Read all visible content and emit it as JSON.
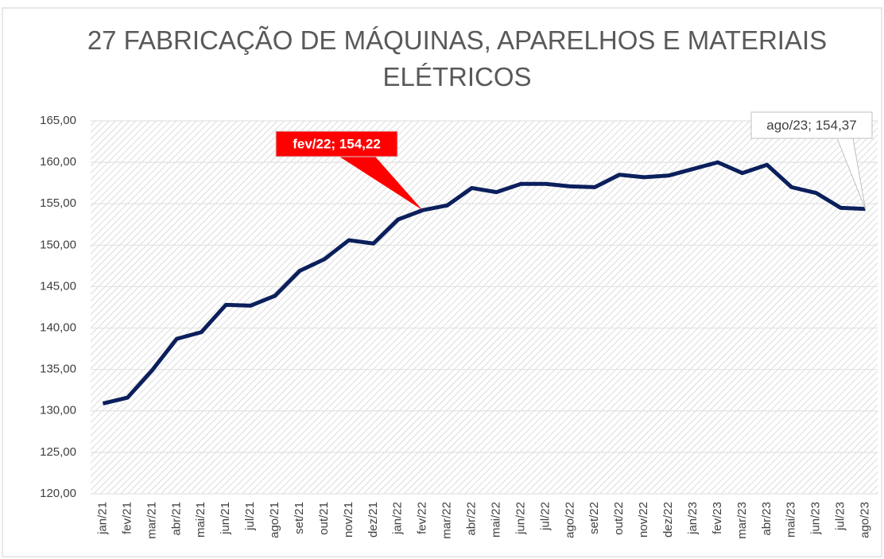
{
  "chart_data": {
    "type": "line",
    "title": "27 FABRICAÇÃO DE MÁQUINAS, APARELHOS E MATERIAIS ELÉTRICOS",
    "categories": [
      "jan/21",
      "fev/21",
      "mar/21",
      "abr/21",
      "mai/21",
      "jun/21",
      "jul/21",
      "ago/21",
      "set/21",
      "out/21",
      "nov/21",
      "dez/21",
      "jan/22",
      "fev/22",
      "mar/22",
      "abr/22",
      "mai/22",
      "jun/22",
      "jul/22",
      "ago/22",
      "set/22",
      "out/22",
      "nov/22",
      "dez/22",
      "jan/23",
      "fev/23",
      "mar/23",
      "abr/23",
      "mai/23",
      "jun/23",
      "jul/23",
      "ago/23"
    ],
    "series": [
      {
        "name": "27 FABRICAÇÃO DE MÁQUINAS, APARELHOS E MATERIAIS ELÉTRICOS",
        "color": "#0b1f5c",
        "values": [
          130.9,
          131.6,
          134.9,
          138.7,
          139.5,
          142.8,
          142.7,
          143.9,
          146.9,
          148.3,
          150.6,
          150.2,
          153.1,
          154.22,
          154.8,
          156.9,
          156.4,
          157.4,
          157.4,
          157.1,
          157.0,
          158.5,
          158.2,
          158.4,
          159.2,
          160.0,
          158.7,
          159.7,
          157.0,
          156.3,
          154.5,
          154.37
        ]
      }
    ],
    "ylim": [
      120,
      165
    ],
    "yticks": [
      {
        "value": 120,
        "label": "120,00"
      },
      {
        "value": 125,
        "label": "125,00"
      },
      {
        "value": 130,
        "label": "130,00"
      },
      {
        "value": 135,
        "label": "135,00"
      },
      {
        "value": 140,
        "label": "140,00"
      },
      {
        "value": 145,
        "label": "145,00"
      },
      {
        "value": 150,
        "label": "150,00"
      },
      {
        "value": 155,
        "label": "155,00"
      },
      {
        "value": 160,
        "label": "160,00"
      },
      {
        "value": 165,
        "label": "165,00"
      }
    ],
    "grid": true,
    "annotations": [
      {
        "text": "fev/22; 154,22",
        "category": "fev/22",
        "style": "red"
      },
      {
        "text": "ago/23; 154,37",
        "category": "ago/23",
        "style": "white"
      }
    ]
  }
}
